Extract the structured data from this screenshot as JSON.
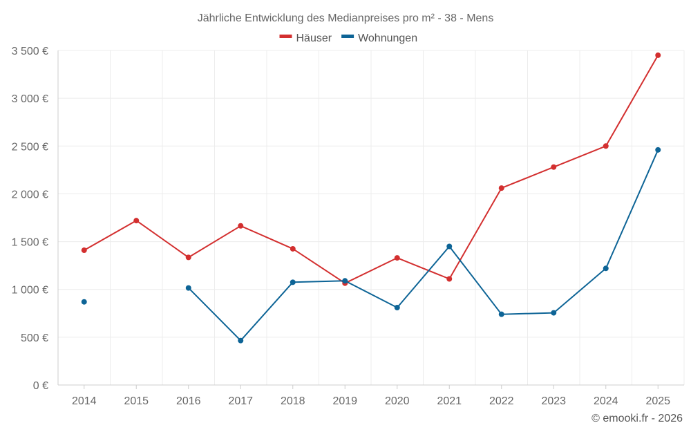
{
  "chart_data": {
    "type": "line",
    "title": "Jährliche Entwicklung des Medianpreises pro m² - 38 - Mens",
    "categories": [
      "2014",
      "2015",
      "2016",
      "2017",
      "2018",
      "2019",
      "2020",
      "2021",
      "2022",
      "2023",
      "2024",
      "2025"
    ],
    "series": [
      {
        "name": "Häuser",
        "color": "#d32f2f",
        "values": [
          1410,
          1720,
          1335,
          1665,
          1425,
          1065,
          1330,
          1110,
          2060,
          2280,
          2500,
          3450
        ]
      },
      {
        "name": "Wohnungen",
        "color": "#0d6496",
        "values": [
          870,
          null,
          1015,
          465,
          1075,
          1090,
          810,
          1450,
          740,
          755,
          1220,
          2460
        ]
      }
    ],
    "ylim": [
      0,
      3500
    ],
    "yticks": [
      0,
      500,
      1000,
      1500,
      2000,
      2500,
      3000,
      3500
    ],
    "ytick_labels": [
      "0 €",
      "500 €",
      "1 000 €",
      "1 500 €",
      "2 000 €",
      "2 500 €",
      "3 000 €",
      "3 500 €"
    ],
    "xlabel": "",
    "ylabel": "",
    "grid": true,
    "legend_position": "top-center"
  },
  "credit": "© emooki.fr - 2026"
}
